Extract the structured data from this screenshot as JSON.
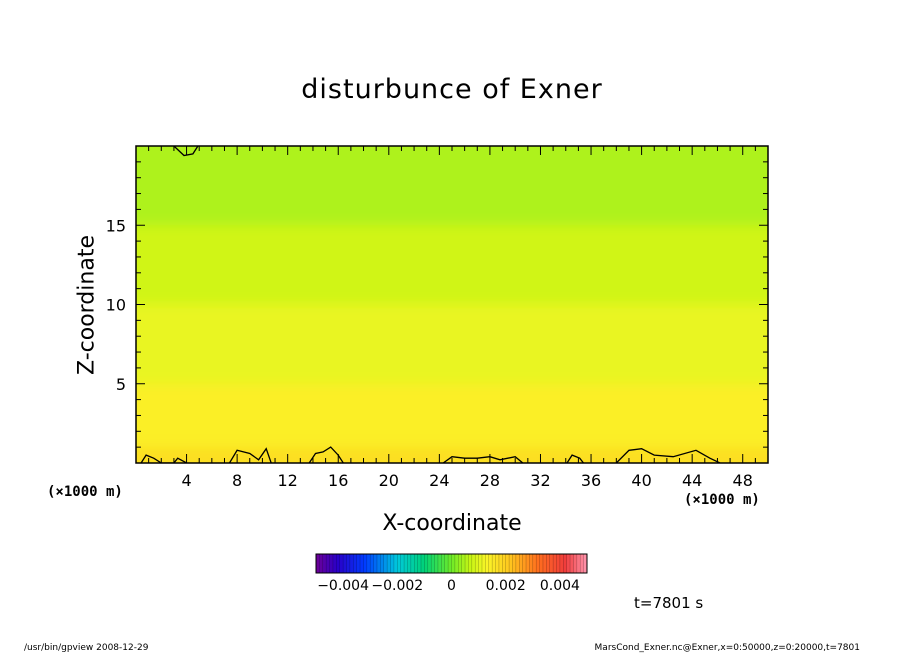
{
  "chart_data": {
    "type": "heatmap",
    "title": "disturbunce of Exner",
    "xlabel": "X-coordinate",
    "ylabel": "Z-coordinate",
    "x_unit_left": "(×1000 m)",
    "x_unit_right": "(×1000 m)",
    "xlim": [
      0,
      50
    ],
    "ylim": [
      0,
      20
    ],
    "xticks": [
      4,
      8,
      12,
      16,
      20,
      24,
      28,
      32,
      36,
      40,
      44,
      48
    ],
    "yticks": [
      5,
      10,
      15
    ],
    "colorbar": {
      "range": [
        -0.005,
        0.005
      ],
      "tick_values": [
        -0.004,
        -0.002,
        0,
        0.002,
        0.004
      ],
      "tick_labels": [
        "−0.004",
        "−0.002",
        "0",
        "0.002",
        "0.004"
      ]
    },
    "field_description_levels": [
      {
        "z_range": [
          15,
          20
        ],
        "value": 0.0005
      },
      {
        "z_range": [
          10,
          15
        ],
        "value": 0.0008
      },
      {
        "z_range": [
          5,
          10
        ],
        "value": 0.0011
      },
      {
        "z_range": [
          1,
          5
        ],
        "value": 0.0014
      },
      {
        "z_range": [
          0,
          1
        ],
        "value": 0.0017
      }
    ],
    "contours": [
      {
        "level": 0,
        "points": [
          [
            3.0,
            20.0
          ],
          [
            3.8,
            19.4
          ],
          [
            4.5,
            19.5
          ],
          [
            4.9,
            20.0
          ]
        ]
      },
      {
        "level": 0.002,
        "points": [
          [
            0.4,
            0
          ],
          [
            0.8,
            0.5
          ],
          [
            1.4,
            0.3
          ],
          [
            2.0,
            0
          ],
          [
            3.0,
            0
          ],
          [
            3.3,
            0.3
          ],
          [
            4.0,
            0
          ]
        ]
      },
      {
        "level": 0.002,
        "points": [
          [
            7.4,
            0
          ],
          [
            8.0,
            0.8
          ],
          [
            9.0,
            0.6
          ],
          [
            9.7,
            0.2
          ],
          [
            10.3,
            0.9
          ],
          [
            10.7,
            0
          ]
        ]
      },
      {
        "level": 0.002,
        "points": [
          [
            13.7,
            0
          ],
          [
            14.2,
            0.6
          ],
          [
            14.8,
            0.7
          ],
          [
            15.4,
            1.0
          ],
          [
            16.0,
            0.5
          ],
          [
            16.4,
            0
          ]
        ]
      },
      {
        "level": 0.002,
        "points": [
          [
            24.3,
            0
          ],
          [
            25.0,
            0.4
          ],
          [
            26.0,
            0.3
          ],
          [
            27.0,
            0.3
          ],
          [
            28.0,
            0.4
          ],
          [
            28.8,
            0.2
          ],
          [
            30.0,
            0.4
          ],
          [
            30.6,
            0
          ]
        ]
      },
      {
        "level": 0.002,
        "points": [
          [
            34.1,
            0
          ],
          [
            34.5,
            0.5
          ],
          [
            35.1,
            0.3
          ],
          [
            35.4,
            0
          ]
        ]
      },
      {
        "level": 0.002,
        "points": [
          [
            38.0,
            0
          ],
          [
            39.0,
            0.8
          ],
          [
            40.0,
            0.9
          ],
          [
            41.0,
            0.5
          ],
          [
            42.5,
            0.4
          ],
          [
            44.3,
            0.8
          ],
          [
            45.4,
            0.3
          ],
          [
            46.2,
            0
          ]
        ]
      }
    ]
  },
  "labels": {
    "time": "t=7801 s",
    "footer_left": "/usr/bin/gpview   2008-12-29",
    "footer_right": "MarsCond_Exner.nc@Exner,x=0:50000,z=0:20000,t=7801"
  }
}
